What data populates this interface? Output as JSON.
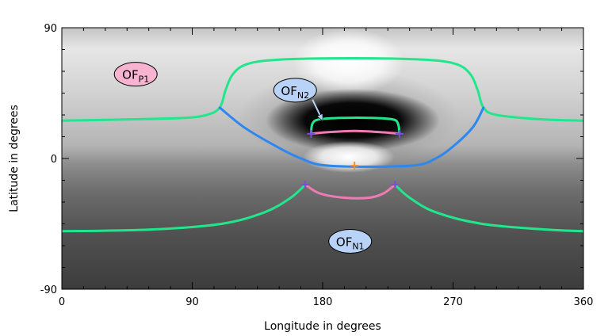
{
  "chart_data": {
    "type": "line",
    "xlabel": "Longitude in degrees",
    "ylabel": "Latitude in degrees",
    "xlim": [
      0,
      360
    ],
    "ylim": [
      -90,
      90
    ],
    "x_ticks": [
      0,
      90,
      180,
      270,
      360
    ],
    "x_tick_labels": [
      "0",
      "90",
      "180",
      "270",
      "360"
    ],
    "y_ticks": [
      -90,
      0,
      90
    ],
    "y_tick_labels": [
      "-90",
      "0",
      "90"
    ],
    "grid": false,
    "background": "grayscale magnetic field map",
    "colors": {
      "green": "#22e68c",
      "blue": "#2e86f0",
      "pink": "#f07ab4",
      "marker_purple": "#7a4fd6",
      "marker_orange": "#ff8a1c",
      "badge_pink": "#f7b3d0",
      "badge_blue": "#b8d3f7"
    },
    "series": [
      {
        "color": "green",
        "points": [
          [
            0,
            26
          ],
          [
            50,
            27
          ],
          [
            85,
            28
          ],
          [
            100,
            30
          ],
          [
            109,
            35
          ],
          [
            113,
            47
          ],
          [
            118,
            58
          ],
          [
            128,
            65
          ],
          [
            150,
            68
          ],
          [
            200,
            69
          ],
          [
            250,
            68
          ],
          [
            272,
            65
          ],
          [
            282,
            58
          ],
          [
            287,
            47
          ],
          [
            291,
            35
          ],
          [
            300,
            30
          ],
          [
            330,
            27
          ],
          [
            360,
            26
          ]
        ]
      },
      {
        "color": "blue",
        "points": [
          [
            109,
            35
          ],
          [
            125,
            22
          ],
          [
            145,
            10
          ],
          [
            165,
            0
          ],
          [
            185,
            -5
          ],
          [
            240,
            -5
          ],
          [
            258,
            0
          ],
          [
            272,
            10
          ],
          [
            284,
            22
          ],
          [
            291,
            35
          ]
        ]
      },
      {
        "color": "green",
        "points": [
          [
            172,
            17
          ],
          [
            173,
            24
          ],
          [
            178,
            27
          ],
          [
            195,
            28
          ],
          [
            212,
            28
          ],
          [
            228,
            27
          ],
          [
            232,
            24
          ],
          [
            233,
            17
          ]
        ]
      },
      {
        "color": "pink",
        "points": [
          [
            172,
            17
          ],
          [
            182,
            18
          ],
          [
            202,
            19
          ],
          [
            222,
            18
          ],
          [
            233,
            17
          ]
        ]
      },
      {
        "color": "green",
        "points": [
          [
            0,
            -50
          ],
          [
            60,
            -49
          ],
          [
            110,
            -45
          ],
          [
            140,
            -37
          ],
          [
            158,
            -27
          ],
          [
            168,
            -18
          ]
        ]
      },
      {
        "color": "green",
        "points": [
          [
            230,
            -18
          ],
          [
            240,
            -27
          ],
          [
            258,
            -37
          ],
          [
            290,
            -45
          ],
          [
            335,
            -49
          ],
          [
            360,
            -50
          ]
        ]
      },
      {
        "color": "pink",
        "points": [
          [
            168,
            -18
          ],
          [
            178,
            -24
          ],
          [
            195,
            -27
          ],
          [
            212,
            -27
          ],
          [
            222,
            -24
          ],
          [
            230,
            -18
          ]
        ]
      }
    ],
    "markers": [
      {
        "x": 172,
        "y": 17,
        "color": "marker_purple"
      },
      {
        "x": 233,
        "y": 17,
        "color": "marker_purple"
      },
      {
        "x": 168,
        "y": -18,
        "color": "marker_purple"
      },
      {
        "x": 230,
        "y": -18,
        "color": "marker_purple"
      },
      {
        "x": 202,
        "y": -5,
        "color": "marker_orange"
      }
    ],
    "labels": [
      {
        "main": "OF",
        "sub": "P1",
        "x": 51,
        "y": 58,
        "color": "badge_pink"
      },
      {
        "main": "OF",
        "sub": "N2",
        "x": 161,
        "y": 47,
        "color": "badge_blue",
        "arrow_to": [
          180,
          26
        ]
      },
      {
        "main": "OF",
        "sub": "N1",
        "x": 199,
        "y": -57,
        "color": "badge_blue"
      }
    ]
  }
}
